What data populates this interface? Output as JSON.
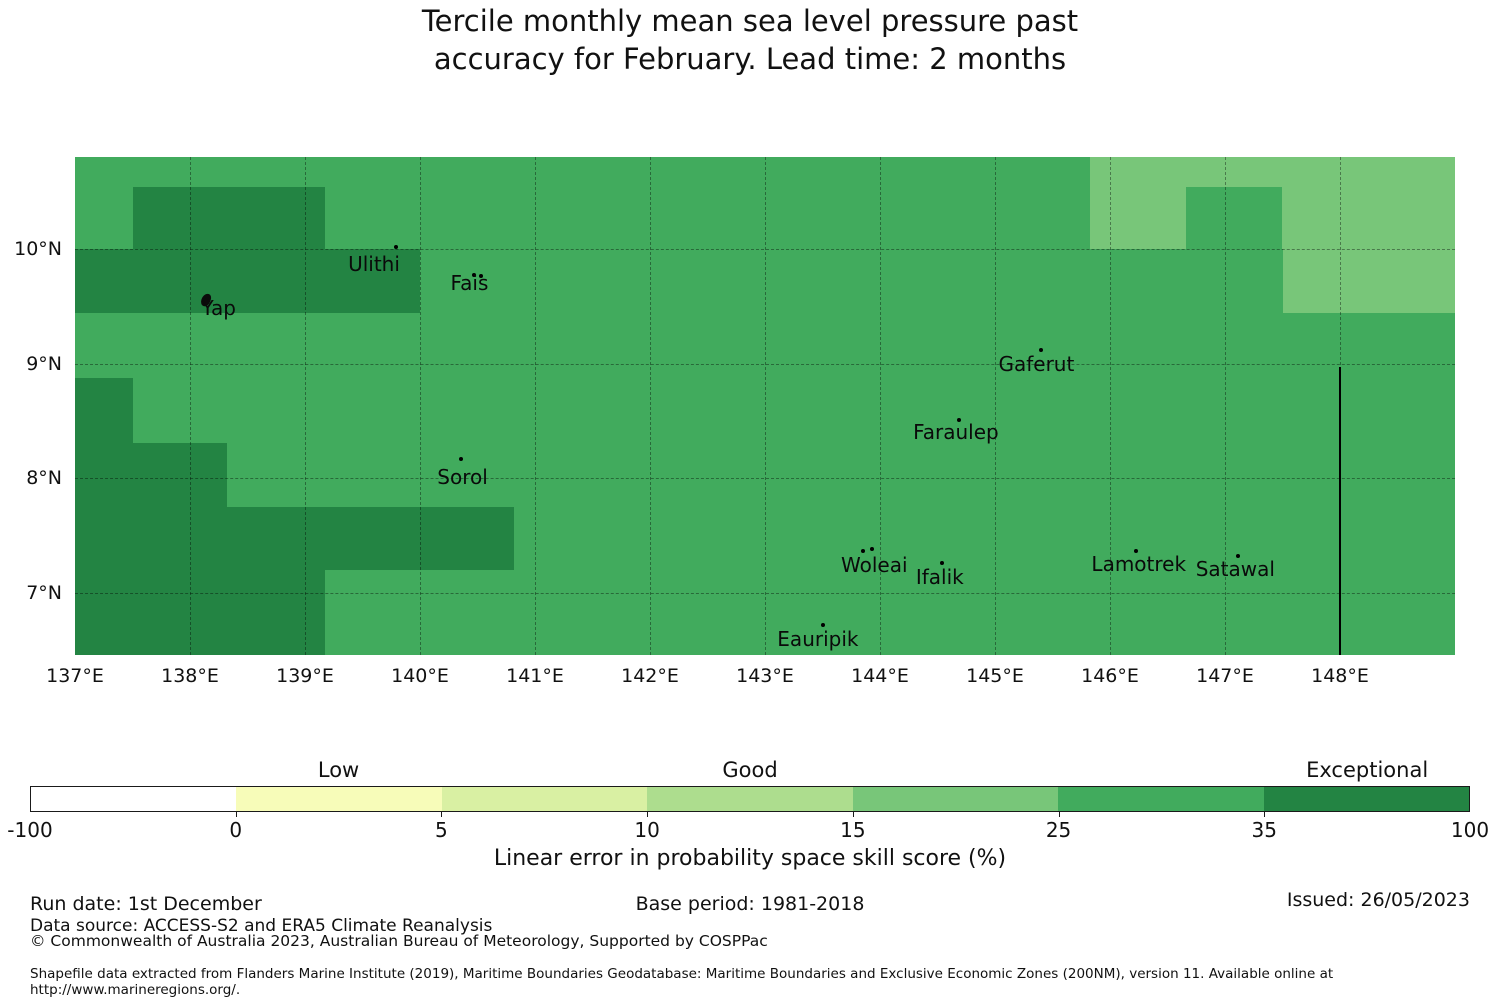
{
  "title": {
    "line1": "Tercile monthly mean sea level pressure past",
    "line2": "accuracy for February. Lead time: 2 months"
  },
  "chart_data": {
    "type": "heatmap",
    "subtype": "categorical-skill-map",
    "title": "Tercile monthly mean sea level pressure past accuracy for February. Lead time: 2 months",
    "extent": {
      "lon_min": 137.0,
      "lon_max": 149.0,
      "lat_min": 6.46,
      "lat_max": 10.8
    },
    "base_region": {
      "category": "25-35",
      "color": "#41ab5d"
    },
    "regions": [
      {
        "category": "15-25",
        "color": "#78c679",
        "lon": [
          145.83,
          149.0
        ],
        "lat": [
          10.0,
          10.8
        ]
      },
      {
        "category": "25-35",
        "color": "#41ab5d",
        "lon": [
          146.66,
          147.5
        ],
        "lat": [
          10.0,
          10.54
        ]
      },
      {
        "category": "15-25",
        "color": "#78c679",
        "lon": [
          147.5,
          149.0
        ],
        "lat": [
          9.44,
          10.0
        ]
      },
      {
        "category": "35-100",
        "color": "#238443",
        "lon": [
          137.5,
          139.17
        ],
        "lat": [
          10.0,
          10.54
        ]
      },
      {
        "category": "35-100",
        "color": "#238443",
        "lon": [
          137.0,
          140.0
        ],
        "lat": [
          9.44,
          10.0
        ]
      },
      {
        "category": "35-100",
        "color": "#238443",
        "lon": [
          137.0,
          137.5
        ],
        "lat": [
          8.31,
          8.87
        ]
      },
      {
        "category": "35-100",
        "color": "#238443",
        "lon": [
          137.0,
          138.32
        ],
        "lat": [
          7.75,
          8.31
        ]
      },
      {
        "category": "35-100",
        "color": "#238443",
        "lon": [
          137.0,
          140.82
        ],
        "lat": [
          7.2,
          7.75
        ]
      },
      {
        "category": "35-100",
        "color": "#238443",
        "lon": [
          137.0,
          139.17
        ],
        "lat": [
          6.46,
          7.2
        ]
      }
    ],
    "islands": [
      {
        "name": "Yap",
        "label_lon": 138.25,
        "label_lat": 9.48,
        "marker": "blob",
        "dots": [
          [
            138.14,
            9.55
          ]
        ]
      },
      {
        "name": "Ulithi",
        "label_lon": 139.6,
        "label_lat": 9.87,
        "marker": "dots",
        "dots": [
          [
            139.79,
            10.02
          ]
        ]
      },
      {
        "name": "Fais",
        "label_lon": 140.43,
        "label_lat": 9.7,
        "marker": "dots",
        "dots": [
          [
            140.47,
            9.77
          ],
          [
            140.53,
            9.76
          ]
        ]
      },
      {
        "name": "Gaferut",
        "label_lon": 145.36,
        "label_lat": 9.0,
        "marker": "dots",
        "dots": [
          [
            145.4,
            9.12
          ]
        ]
      },
      {
        "name": "Faraulep",
        "label_lon": 144.66,
        "label_lat": 8.4,
        "marker": "dots",
        "dots": [
          [
            144.69,
            8.51
          ]
        ]
      },
      {
        "name": "Sorol",
        "label_lon": 140.37,
        "label_lat": 8.01,
        "marker": "dots",
        "dots": [
          [
            140.36,
            8.17
          ]
        ]
      },
      {
        "name": "Woleai",
        "label_lon": 143.95,
        "label_lat": 7.24,
        "marker": "dots",
        "dots": [
          [
            143.85,
            7.37
          ],
          [
            143.93,
            7.38
          ]
        ]
      },
      {
        "name": "Ifalik",
        "label_lon": 144.52,
        "label_lat": 7.14,
        "marker": "dots",
        "dots": [
          [
            144.54,
            7.26
          ]
        ]
      },
      {
        "name": "Lamotrek",
        "label_lon": 146.25,
        "label_lat": 7.25,
        "marker": "dots",
        "dots": [
          [
            146.23,
            7.37
          ]
        ]
      },
      {
        "name": "Satawal",
        "label_lon": 147.09,
        "label_lat": 7.21,
        "marker": "dots",
        "dots": [
          [
            147.11,
            7.32
          ]
        ]
      },
      {
        "name": "Eauripik",
        "label_lon": 143.46,
        "label_lat": 6.6,
        "marker": "dots",
        "dots": [
          [
            143.5,
            6.72
          ]
        ]
      }
    ],
    "boundary_line": {
      "lon": 148.0,
      "lat_top": 8.97,
      "lat_bottom": 6.46
    },
    "axes": {
      "xticks": [
        {
          "label": "137°E",
          "lon": 137
        },
        {
          "label": "138°E",
          "lon": 138
        },
        {
          "label": "139°E",
          "lon": 139
        },
        {
          "label": "140°E",
          "lon": 140
        },
        {
          "label": "141°E",
          "lon": 141
        },
        {
          "label": "142°E",
          "lon": 142
        },
        {
          "label": "143°E",
          "lon": 143
        },
        {
          "label": "144°E",
          "lon": 144
        },
        {
          "label": "145°E",
          "lon": 145
        },
        {
          "label": "146°E",
          "lon": 146
        },
        {
          "label": "147°E",
          "lon": 147
        },
        {
          "label": "148°E",
          "lon": 148
        }
      ],
      "yticks": [
        {
          "label": "10°N",
          "lat": 10
        },
        {
          "label": "9°N",
          "lat": 9
        },
        {
          "label": "8°N",
          "lat": 8
        },
        {
          "label": "7°N",
          "lat": 7
        }
      ],
      "grid_lons": [
        138,
        139,
        140,
        141,
        142,
        143,
        144,
        145,
        146,
        147,
        148
      ],
      "grid_lats": [
        7,
        8,
        9,
        10
      ],
      "grid_on": true
    },
    "colorbar": {
      "boundary_labels": [
        "-100",
        "0",
        "5",
        "10",
        "15",
        "25",
        "35",
        "100"
      ],
      "segment_colors": [
        "#ffffff",
        "#f7fcb9",
        "#d9f0a3",
        "#addd8e",
        "#78c679",
        "#41ab5d",
        "#238443"
      ],
      "segment_ranges": [
        "-100-0",
        "0-5",
        "5-10",
        "10-15",
        "15-25",
        "25-35",
        "35-100"
      ],
      "category_labels": [
        {
          "label": "Low",
          "segment_index": 1
        },
        {
          "label": "Good",
          "segment_index": 3
        },
        {
          "label": "Exceptional",
          "segment_index": 6
        }
      ],
      "axis_label": "Linear error in probability space skill score (%)"
    }
  },
  "footer": {
    "run_date": "Run date: 1st December",
    "base_period": "Base period: 1981-2018",
    "issued": "Issued: 26/05/2023",
    "data_source": "Data source: ACCESS-S2 and ERA5 Climate Reanalysis",
    "copyright": "© Commonwealth of Australia 2023, Australian Bureau of Meteorology, Supported by COSPPac",
    "shapefile_note": "Shapefile data extracted from Flanders Marine Institute (2019), Maritime Boundaries Geodatabase: Maritime Boundaries and Exclusive Economic Zones (200NM), version 11. Available online at http://www.marineregions.org/."
  }
}
